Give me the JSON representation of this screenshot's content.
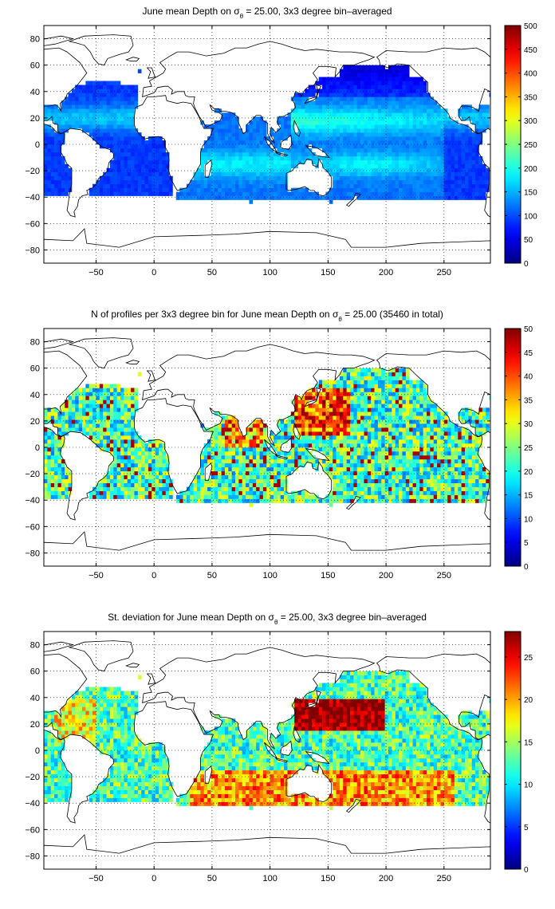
{
  "chart_data": [
    {
      "type": "heatmap",
      "title": "June mean Depth on σ",
      "title_sub": "θ",
      "title_rest": " = 25.00, 3x3 degree bin–averaged",
      "x_ticks": [
        -50,
        0,
        50,
        100,
        150,
        200,
        250
      ],
      "y_ticks": [
        -80,
        -60,
        -40,
        -20,
        0,
        20,
        40,
        60,
        80
      ],
      "xlim": [
        -95,
        290
      ],
      "ylim": [
        -90,
        90
      ],
      "grid": true,
      "colormap": "jet",
      "colorbar_range": [
        0,
        500
      ],
      "colorbar_ticks": [
        0,
        50,
        100,
        150,
        200,
        250,
        300,
        350,
        400,
        450,
        500
      ],
      "colorbar_position": "right",
      "field": "depth",
      "colors": {
        "low": "#00008f",
        "high": "#800000"
      }
    },
    {
      "type": "heatmap",
      "title": "N of profiles per 3x3 degree bin for June mean Depth on σ",
      "title_sub": "θ",
      "title_rest": " = 25.00 (35460 in total)",
      "x_ticks": [
        -50,
        0,
        50,
        100,
        150,
        200,
        250
      ],
      "y_ticks": [
        -80,
        -60,
        -40,
        -20,
        0,
        20,
        40,
        60,
        80
      ],
      "xlim": [
        -95,
        290
      ],
      "ylim": [
        -90,
        90
      ],
      "grid": true,
      "colormap": "jet",
      "colorbar_range": [
        0,
        50
      ],
      "colorbar_ticks": [
        0,
        5,
        10,
        15,
        20,
        25,
        30,
        35,
        40,
        45,
        50
      ],
      "colorbar_position": "right",
      "field": "count",
      "total_profiles": 35460
    },
    {
      "type": "heatmap",
      "title": "St. deviation for June mean Depth on σ",
      "title_sub": "θ",
      "title_rest": " = 25.00, 3x3 degree bin–averaged",
      "x_ticks": [
        -50,
        0,
        50,
        100,
        150,
        200,
        250
      ],
      "y_ticks": [
        -80,
        -60,
        -40,
        -20,
        0,
        20,
        40,
        60,
        80
      ],
      "xlim": [
        -95,
        290
      ],
      "ylim": [
        -90,
        90
      ],
      "grid": true,
      "colormap": "jet",
      "colorbar_range": [
        0,
        28
      ],
      "colorbar_ticks": [
        0,
        5,
        10,
        15,
        20,
        25
      ],
      "colorbar_position": "right",
      "field": "std"
    }
  ]
}
